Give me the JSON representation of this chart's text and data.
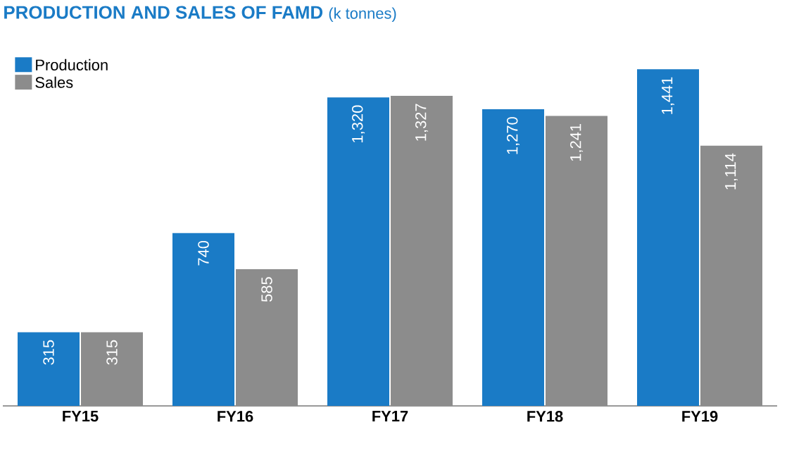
{
  "chart_data": {
    "type": "bar",
    "title": "PRODUCTION AND SALES OF FAMD",
    "subtitle": "(k tonnes)",
    "categories": [
      "FY15",
      "FY16",
      "FY17",
      "FY18",
      "FY19"
    ],
    "series": [
      {
        "name": "Production",
        "color": "#1a7bc6",
        "values": [
          315,
          740,
          1320,
          1270,
          1441
        ],
        "value_labels": [
          "315",
          "740",
          "1,320",
          "1,270",
          "1,441"
        ]
      },
      {
        "name": "Sales",
        "color": "#8c8c8c",
        "values": [
          315,
          585,
          1327,
          1241,
          1114
        ],
        "value_labels": [
          "315",
          "585",
          "1,327",
          "1,241",
          "1,114"
        ]
      }
    ],
    "legend": "top left"
  }
}
